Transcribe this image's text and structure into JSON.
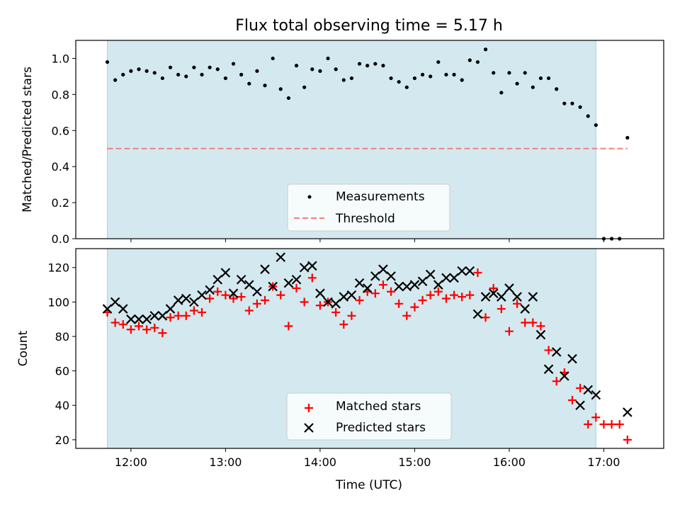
{
  "title": "Flux total observing time = 5.17 h",
  "chart_data": [
    {
      "type": "scatter",
      "ylabel": "Matched/Predicted stars",
      "xlim": [
        "11:25",
        "17:38"
      ],
      "ylim": [
        0,
        1.1
      ],
      "yticks": [
        "0.0",
        "0.2",
        "0.4",
        "0.6",
        "0.8",
        "1.0"
      ],
      "shaded_interval": [
        "11:45",
        "16:55"
      ],
      "shade_color": "#d3e9ef",
      "legend": {
        "placement": "lower-center",
        "entries": [
          "Measurements",
          "Threshold"
        ]
      },
      "threshold": {
        "name": "Threshold",
        "value": 0.5,
        "x": [
          "11:45",
          "17:15"
        ],
        "color": "#f08080"
      },
      "series": [
        {
          "name": "Measurements",
          "color": "#000000",
          "points": [
            [
              "11:45",
              0.98
            ],
            [
              "11:50",
              0.88
            ],
            [
              "11:55",
              0.91
            ],
            [
              "12:00",
              0.93
            ],
            [
              "12:05",
              0.94
            ],
            [
              "12:10",
              0.93
            ],
            [
              "12:15",
              0.92
            ],
            [
              "12:20",
              0.89
            ],
            [
              "12:25",
              0.95
            ],
            [
              "12:30",
              0.91
            ],
            [
              "12:35",
              0.9
            ],
            [
              "12:40",
              0.95
            ],
            [
              "12:45",
              0.91
            ],
            [
              "12:50",
              0.95
            ],
            [
              "12:55",
              0.94
            ],
            [
              "13:00",
              0.89
            ],
            [
              "13:05",
              0.97
            ],
            [
              "13:10",
              0.91
            ],
            [
              "13:15",
              0.86
            ],
            [
              "13:20",
              0.93
            ],
            [
              "13:25",
              0.85
            ],
            [
              "13:30",
              1.0
            ],
            [
              "13:35",
              0.83
            ],
            [
              "13:40",
              0.78
            ],
            [
              "13:45",
              0.96
            ],
            [
              "13:50",
              0.84
            ],
            [
              "13:55",
              0.94
            ],
            [
              "14:00",
              0.93
            ],
            [
              "14:05",
              1.0
            ],
            [
              "14:10",
              0.94
            ],
            [
              "14:15",
              0.88
            ],
            [
              "14:20",
              0.89
            ],
            [
              "14:25",
              0.97
            ],
            [
              "14:30",
              0.96
            ],
            [
              "14:35",
              0.97
            ],
            [
              "14:40",
              0.96
            ],
            [
              "14:45",
              0.89
            ],
            [
              "14:50",
              0.87
            ],
            [
              "14:55",
              0.84
            ],
            [
              "15:00",
              0.89
            ],
            [
              "15:05",
              0.91
            ],
            [
              "15:10",
              0.9
            ],
            [
              "15:15",
              0.98
            ],
            [
              "15:20",
              0.91
            ],
            [
              "15:25",
              0.91
            ],
            [
              "15:30",
              0.88
            ],
            [
              "15:35",
              0.99
            ],
            [
              "15:40",
              0.98
            ],
            [
              "15:45",
              1.05
            ],
            [
              "15:50",
              0.92
            ],
            [
              "15:55",
              0.81
            ],
            [
              "16:00",
              0.92
            ],
            [
              "16:05",
              0.86
            ],
            [
              "16:10",
              0.92
            ],
            [
              "16:15",
              0.84
            ],
            [
              "16:20",
              0.89
            ],
            [
              "16:25",
              0.89
            ],
            [
              "16:30",
              0.83
            ],
            [
              "16:35",
              0.75
            ],
            [
              "16:40",
              0.75
            ],
            [
              "16:45",
              0.73
            ],
            [
              "16:50",
              0.68
            ],
            [
              "16:55",
              0.63
            ],
            [
              "17:00",
              0.0
            ],
            [
              "17:05",
              0.0
            ],
            [
              "17:10",
              0.0
            ],
            [
              "17:15",
              0.56
            ]
          ]
        }
      ]
    },
    {
      "type": "scatter",
      "ylabel": "Count",
      "xlabel": "Time (UTC)",
      "xlim": [
        "11:25",
        "17:38"
      ],
      "ylim": [
        15,
        131
      ],
      "yticks": [
        "20",
        "40",
        "60",
        "80",
        "100",
        "120"
      ],
      "xticks": [
        "12:00",
        "13:00",
        "14:00",
        "15:00",
        "16:00",
        "17:00"
      ],
      "shaded_interval": [
        "11:45",
        "16:55"
      ],
      "shade_color": "#d3e9ef",
      "legend": {
        "placement": "lower-center",
        "entries": [
          "Matched stars",
          "Predicted stars"
        ]
      },
      "series": [
        {
          "name": "Matched stars",
          "marker": "plus",
          "color": "#ff0000",
          "x": [
            "11:45",
            "11:50",
            "11:55",
            "12:00",
            "12:05",
            "12:10",
            "12:15",
            "12:20",
            "12:25",
            "12:30",
            "12:35",
            "12:40",
            "12:45",
            "12:50",
            "12:55",
            "13:00",
            "13:05",
            "13:10",
            "13:15",
            "13:20",
            "13:25",
            "13:30",
            "13:35",
            "13:40",
            "13:45",
            "13:50",
            "13:55",
            "14:00",
            "14:05",
            "14:10",
            "14:15",
            "14:20",
            "14:25",
            "14:30",
            "14:35",
            "14:40",
            "14:45",
            "14:50",
            "14:55",
            "15:00",
            "15:05",
            "15:10",
            "15:15",
            "15:20",
            "15:25",
            "15:30",
            "15:35",
            "15:40",
            "15:45",
            "15:50",
            "15:55",
            "16:00",
            "16:05",
            "16:10",
            "16:15",
            "16:20",
            "16:25",
            "16:30",
            "16:35",
            "16:40",
            "16:45",
            "16:50",
            "16:55",
            "17:00",
            "17:05",
            "17:10",
            "17:15"
          ],
          "values": [
            94,
            88,
            87,
            84,
            86,
            84,
            85,
            82,
            91,
            92,
            92,
            95,
            94,
            102,
            106,
            104,
            102,
            103,
            95,
            99,
            101,
            109,
            104,
            86,
            108,
            100,
            114,
            98,
            100,
            94,
            87,
            92,
            101,
            106,
            105,
            110,
            106,
            99,
            92,
            97,
            101,
            104,
            106,
            102,
            104,
            103,
            104,
            117,
            91,
            108,
            96,
            83,
            99,
            88,
            88,
            86,
            72,
            54,
            59,
            43,
            50,
            29,
            33,
            29,
            29,
            29,
            20
          ]
        },
        {
          "name": "Predicted stars",
          "marker": "x",
          "color": "#000000",
          "x": [
            "11:45",
            "11:50",
            "11:55",
            "12:00",
            "12:05",
            "12:10",
            "12:15",
            "12:20",
            "12:25",
            "12:30",
            "12:35",
            "12:40",
            "12:45",
            "12:50",
            "12:55",
            "13:00",
            "13:05",
            "13:10",
            "13:15",
            "13:20",
            "13:25",
            "13:30",
            "13:35",
            "13:40",
            "13:45",
            "13:50",
            "13:55",
            "14:00",
            "14:05",
            "14:10",
            "14:15",
            "14:20",
            "14:25",
            "14:30",
            "14:35",
            "14:40",
            "14:45",
            "14:50",
            "14:55",
            "15:00",
            "15:05",
            "15:10",
            "15:15",
            "15:20",
            "15:25",
            "15:30",
            "15:35",
            "15:40",
            "15:45",
            "15:50",
            "15:55",
            "16:00",
            "16:05",
            "16:10",
            "16:15",
            "16:20",
            "16:25",
            "16:30",
            "16:35",
            "16:40",
            "16:45",
            "16:50",
            "16:55",
            "17:15"
          ],
          "values": [
            96,
            100,
            96,
            90,
            90,
            90,
            92,
            92,
            96,
            101,
            102,
            100,
            104,
            107,
            113,
            117,
            105,
            113,
            110,
            106,
            119,
            109,
            126,
            111,
            113,
            120,
            121,
            105,
            100,
            99,
            103,
            104,
            111,
            108,
            115,
            119,
            115,
            109,
            109,
            110,
            112,
            116,
            110,
            114,
            114,
            118,
            118,
            93,
            103,
            105,
            103,
            108,
            103,
            96,
            103,
            81,
            61,
            71,
            57,
            67,
            40,
            49,
            46,
            36
          ]
        }
      ]
    }
  ]
}
